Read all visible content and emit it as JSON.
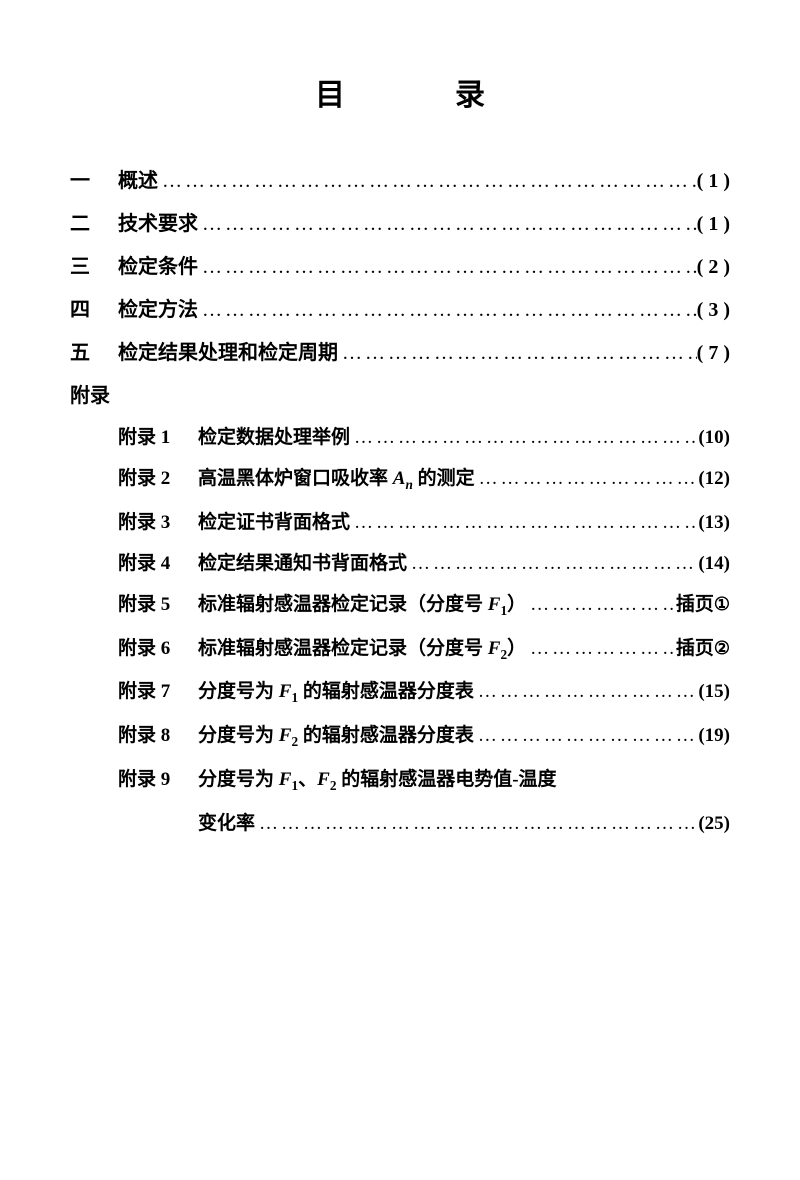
{
  "title": "目　录",
  "main_items": [
    {
      "num": "一",
      "label": "概述",
      "page": "( 1 )"
    },
    {
      "num": "二",
      "label": "技术要求",
      "page": "( 1 )"
    },
    {
      "num": "三",
      "label": "检定条件",
      "page": "( 2 )"
    },
    {
      "num": "四",
      "label": "检定方法",
      "page": "( 3 )"
    },
    {
      "num": "五",
      "label": "检定结果处理和检定周期",
      "page": "( 7 )"
    }
  ],
  "appendix_header": "附录",
  "sub_items": [
    {
      "num": "附录 1",
      "label_html": "检定数据处理举例",
      "page": "(10)"
    },
    {
      "num": "附录 2",
      "label_html": "高温黑体炉窗口吸收率 <span class='italic-var'>A<sub>n</sub></span> 的测定",
      "page": "(12)"
    },
    {
      "num": "附录 3",
      "label_html": "检定证书背面格式",
      "page": "(13)"
    },
    {
      "num": "附录 4",
      "label_html": "检定结果通知书背面格式",
      "page": "(14)"
    },
    {
      "num": "附录 5",
      "label_html": "标准辐射感温器检定记录（分度号 <span class='italic-var'>F</span><sub>1</sub>）",
      "page": "插页<span class='circled'>①</span>"
    },
    {
      "num": "附录 6",
      "label_html": "标准辐射感温器检定记录（分度号 <span class='italic-var'>F</span><sub>2</sub>）",
      "page": "插页<span class='circled'>②</span>"
    },
    {
      "num": "附录 7",
      "label_html": "分度号为 <span class='italic-var'>F</span><sub>1</sub> 的辐射感温器分度表",
      "page": "(15)"
    },
    {
      "num": "附录 8",
      "label_html": "分度号为 <span class='italic-var'>F</span><sub>2</sub> 的辐射感温器分度表",
      "page": "(19)"
    },
    {
      "num": "附录 9",
      "label_html": "分度号为 <span class='italic-var'>F</span><sub>1</sub>、<span class='italic-var'>F</span><sub>2</sub> 的辐射感温器电势值-温度",
      "continuation": "变化率",
      "page": "(25)"
    }
  ],
  "dots_fill": "……………………………………………………………………………………………………"
}
